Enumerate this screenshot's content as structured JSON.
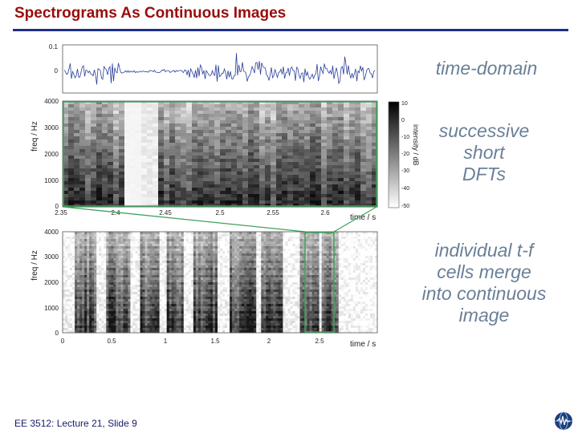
{
  "slide": {
    "title": "Spectrograms As Continuous Images",
    "footer": "EE 3512: Lecture 21, Slide 9"
  },
  "figure": {
    "panel1": {
      "y_ticks": [
        "0.1",
        "0"
      ],
      "caption": "time-domain"
    },
    "panel2": {
      "ylabel": "freq / Hz",
      "y_ticks": [
        "4000",
        "3000",
        "2000",
        "1000",
        "0"
      ],
      "x_ticks": [
        "2.35",
        "2.4",
        "2.45",
        "2.5",
        "2.55",
        "2.6"
      ],
      "xlabel": "time / s",
      "colorbar_label": "intensity / dB",
      "colorbar_ticks": [
        "10",
        "0",
        "-10",
        "-20",
        "-30",
        "-40",
        "-50"
      ],
      "caption_lines": [
        "successive",
        "short",
        "DFTs"
      ]
    },
    "panel3": {
      "ylabel": "freq / Hz",
      "y_ticks": [
        "4000",
        "3000",
        "2000",
        "1000",
        "0"
      ],
      "x_ticks": [
        "0",
        "0.5",
        "1",
        "1.5",
        "2",
        "2.5"
      ],
      "xlabel": "time / s",
      "caption_lines": [
        "individual t-f",
        "cells merge",
        "into continuous",
        "image"
      ]
    }
  },
  "colors": {
    "title": "#9b0b0b",
    "rule": "#1f2f86",
    "waveform": "#2a3f9a",
    "highlight": "#3fa35a",
    "caption": "#6a7f97"
  }
}
